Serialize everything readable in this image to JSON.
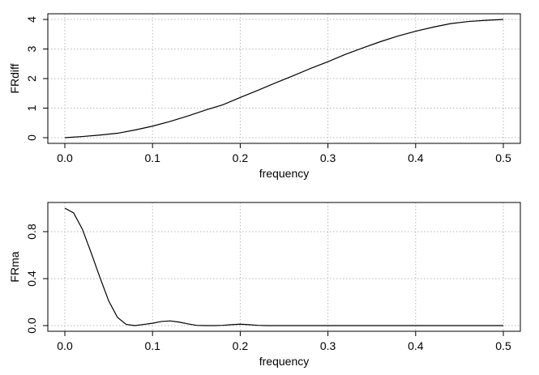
{
  "chart_data": [
    {
      "type": "line",
      "title": "",
      "xlabel": "frequency",
      "ylabel": "FRdiff",
      "xlim": [
        0,
        0.5
      ],
      "ylim": [
        0,
        4
      ],
      "xticks": [
        "0.0",
        "0.1",
        "0.2",
        "0.3",
        "0.4",
        "0.5"
      ],
      "yticks": [
        "0",
        "1",
        "2",
        "3",
        "4"
      ],
      "grid": true,
      "line_color": "#000000",
      "series": [
        {
          "x": [
            0.0,
            0.02,
            0.04,
            0.06,
            0.08,
            0.1,
            0.12,
            0.14,
            0.16,
            0.18,
            0.2,
            0.22,
            0.24,
            0.26,
            0.28,
            0.3,
            0.32,
            0.34,
            0.36,
            0.38,
            0.4,
            0.42,
            0.44,
            0.46,
            0.48,
            0.5
          ],
          "values": [
            0.0,
            0.04,
            0.09,
            0.15,
            0.26,
            0.39,
            0.55,
            0.73,
            0.93,
            1.11,
            1.36,
            1.6,
            1.85,
            2.09,
            2.34,
            2.57,
            2.82,
            3.04,
            3.25,
            3.44,
            3.6,
            3.74,
            3.86,
            3.93,
            3.97,
            4.0
          ]
        }
      ]
    },
    {
      "type": "line",
      "title": "",
      "xlabel": "frequency",
      "ylabel": "FRma",
      "xlim": [
        0,
        0.5
      ],
      "ylim": [
        0,
        1
      ],
      "xticks": [
        "0.0",
        "0.1",
        "0.2",
        "0.3",
        "0.4",
        "0.5"
      ],
      "yticks": [
        "0.0",
        "0.4",
        "0.8"
      ],
      "grid": true,
      "line_color": "#000000",
      "series": [
        {
          "x": [
            0.0,
            0.01,
            0.02,
            0.03,
            0.04,
            0.05,
            0.06,
            0.07,
            0.08,
            0.09,
            0.1,
            0.11,
            0.12,
            0.13,
            0.14,
            0.15,
            0.16,
            0.17,
            0.18,
            0.19,
            0.2,
            0.21,
            0.22,
            0.23,
            0.25,
            0.3,
            0.35,
            0.4,
            0.45,
            0.5
          ],
          "values": [
            1.0,
            0.96,
            0.82,
            0.62,
            0.41,
            0.21,
            0.07,
            0.01,
            0.0,
            0.01,
            0.02,
            0.035,
            0.04,
            0.03,
            0.015,
            0.002,
            0.0,
            0.0,
            0.002,
            0.008,
            0.012,
            0.008,
            0.002,
            0.0,
            0.0,
            0.0,
            0.0,
            0.0,
            0.0,
            0.0
          ]
        }
      ]
    }
  ]
}
